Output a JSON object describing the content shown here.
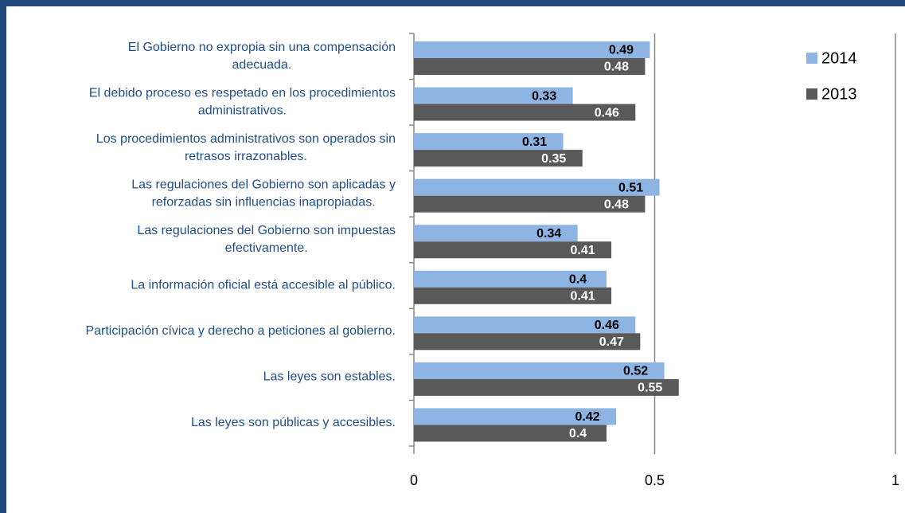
{
  "chart_data": {
    "type": "barh",
    "categories": [
      "El Gobierno no expropia sin una compensación adecuada.",
      "El debido proceso es respetado en los procedimientos administrativos.",
      "Los procedimientos administrativos son operados sin retrasos irrazonables.",
      "Las regulaciones del Gobierno son aplicadas y reforzadas sin influencias inapropiadas.",
      "Las regulaciones del Gobierno son impuestas efectivamente.",
      "La información oficial está accesible al público.",
      "Participación cívica y derecho a peticiones al gobierno.",
      "Las leyes son estables.",
      "Las leyes son públicas y accesibles."
    ],
    "series": [
      {
        "name": "2014",
        "color": "#8eb4e3",
        "values": [
          0.49,
          0.33,
          0.31,
          0.51,
          0.34,
          0.4,
          0.46,
          0.52,
          0.42
        ]
      },
      {
        "name": "2013",
        "color": "#595959",
        "values": [
          0.48,
          0.46,
          0.35,
          0.48,
          0.41,
          0.41,
          0.47,
          0.55,
          0.4
        ]
      }
    ],
    "xlim": [
      0,
      1
    ],
    "xticks": [
      0,
      0.5,
      1
    ],
    "grid": true,
    "legend": "top-right"
  }
}
